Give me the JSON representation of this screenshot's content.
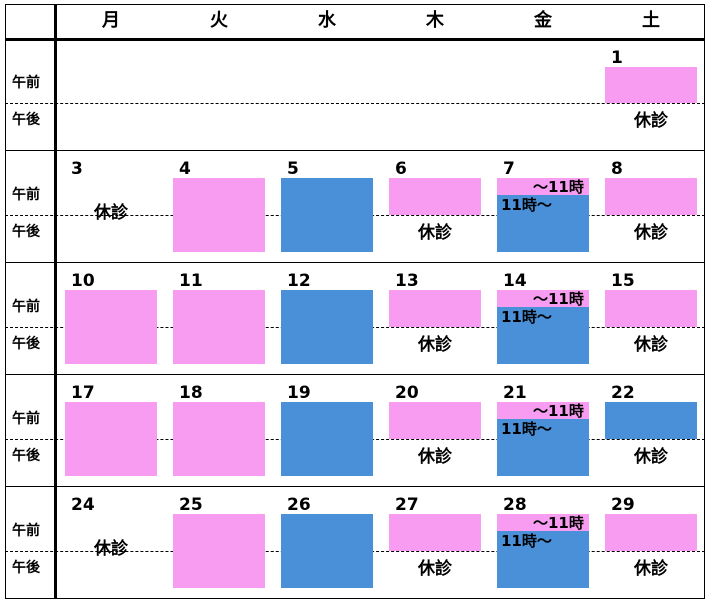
{
  "headers": [
    "月",
    "火",
    "水",
    "木",
    "金",
    "土"
  ],
  "period_labels": {
    "am": "午前",
    "pm": "午後"
  },
  "closed_text": "休診",
  "friday_am_text": "～11時",
  "friday_pm_text": "11時～",
  "colors": {
    "pink": "#F79CF1",
    "blue": "#4A90D9"
  },
  "weeks": [
    [
      "",
      "",
      "",
      "",
      "",
      "1"
    ],
    [
      "3",
      "4",
      "5",
      "6",
      "7",
      "8"
    ],
    [
      "10",
      "11",
      "12",
      "13",
      "14",
      "15"
    ],
    [
      "17",
      "18",
      "19",
      "20",
      "21",
      "22"
    ],
    [
      "24",
      "25",
      "26",
      "27",
      "28",
      "29"
    ]
  ],
  "schedule": [
    [
      null,
      null,
      null,
      null,
      null,
      {
        "am": "pink",
        "pm": "closed"
      }
    ],
    [
      {
        "am": "closed",
        "pm": "closed"
      },
      {
        "am": "pink",
        "pm": "pink"
      },
      {
        "am": "blue",
        "pm": "blue"
      },
      {
        "am": "pink",
        "pm": "closed"
      },
      {
        "am": "fri",
        "pm": "fri"
      },
      {
        "am": "pink",
        "pm": "closed"
      }
    ],
    [
      {
        "am": "pink",
        "pm": "pink"
      },
      {
        "am": "pink",
        "pm": "pink"
      },
      {
        "am": "blue",
        "pm": "blue"
      },
      {
        "am": "pink",
        "pm": "closed"
      },
      {
        "am": "fri",
        "pm": "fri"
      },
      {
        "am": "pink",
        "pm": "closed"
      }
    ],
    [
      {
        "am": "pink",
        "pm": "pink"
      },
      {
        "am": "pink",
        "pm": "pink"
      },
      {
        "am": "blue",
        "pm": "blue"
      },
      {
        "am": "pink",
        "pm": "closed"
      },
      {
        "am": "fri",
        "pm": "fri"
      },
      {
        "am": "blue",
        "pm": "closed"
      }
    ],
    [
      {
        "am": "closed",
        "pm": "closed"
      },
      {
        "am": "pink",
        "pm": "pink"
      },
      {
        "am": "blue",
        "pm": "blue"
      },
      {
        "am": "pink",
        "pm": "closed"
      },
      {
        "am": "fri",
        "pm": "fri"
      },
      {
        "am": "pink",
        "pm": "closed"
      }
    ]
  ]
}
